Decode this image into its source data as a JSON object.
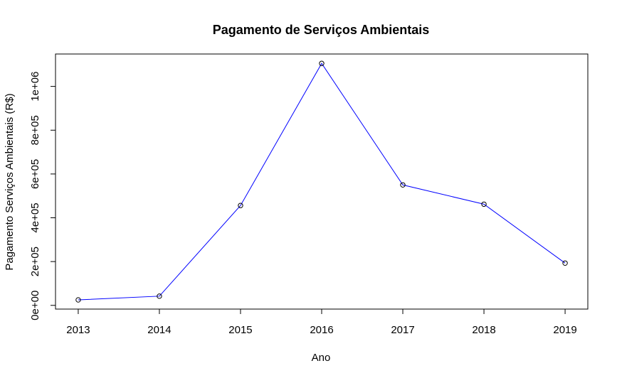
{
  "chart_data": {
    "type": "line",
    "title": "Pagamento de Serviços Ambientais",
    "xlabel": "Ano",
    "ylabel": "Pagamento Serviços Ambientais (R$)",
    "x": [
      2013,
      2014,
      2015,
      2016,
      2017,
      2018,
      2019
    ],
    "x_tick_labels": [
      "2013",
      "2014",
      "2015",
      "2016",
      "2017",
      "2018",
      "2019"
    ],
    "series": [
      {
        "values": [
          25000,
          42000,
          456000,
          1105000,
          550000,
          462000,
          193000
        ],
        "line_color": "#0000ff",
        "marker_color": "#000000"
      }
    ],
    "y_ticks": [
      0,
      200000,
      400000,
      600000,
      800000,
      1000000
    ],
    "y_tick_labels": [
      "0e+00",
      "2e+05",
      "4e+05",
      "6e+05",
      "8e+05",
      "1e+06"
    ],
    "xlim": [
      2012.72,
      2019.28
    ],
    "ylim": [
      -17000,
      1148000
    ],
    "grid": false,
    "legend": "none"
  }
}
